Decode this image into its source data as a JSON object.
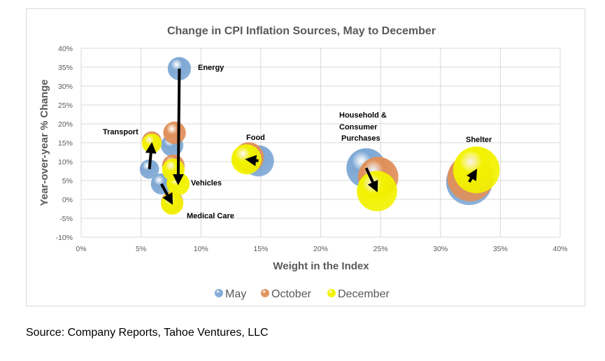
{
  "chart_data": {
    "type": "bubble",
    "title": "Change in CPI Inflation Sources, May to December",
    "xlabel": "Weight in the Index",
    "ylabel": "Year-over-year % Change",
    "xlim": [
      0,
      40
    ],
    "ylim": [
      -10,
      40
    ],
    "x_ticks": [
      "0%",
      "5%",
      "10%",
      "15%",
      "20%",
      "25%",
      "30%",
      "35%",
      "40%"
    ],
    "y_ticks": [
      "40%",
      "35%",
      "30%",
      "25%",
      "20%",
      "15%",
      "10%",
      "5%",
      "0%",
      "-5%",
      "-10%"
    ],
    "grid": true,
    "legend": "bottom",
    "bubble_size": "weight in the index",
    "series": [
      {
        "name": "May",
        "color": "#7ea8d4",
        "points": [
          {
            "category": "Energy",
            "x": 8.2,
            "y": 34.6
          },
          {
            "category": "Vehicles",
            "x": 7.6,
            "y": 14.3
          },
          {
            "category": "Transport",
            "x": 5.7,
            "y": 8.0
          },
          {
            "category": "Medical Care",
            "x": 6.7,
            "y": 4.1
          },
          {
            "category": "Food",
            "x": 14.8,
            "y": 10.2
          },
          {
            "category": "Household & Consumer Purchases",
            "x": 23.8,
            "y": 8.3
          },
          {
            "category": "Shelter",
            "x": 32.4,
            "y": 4.6
          }
        ]
      },
      {
        "name": "October",
        "color": "#e0905a",
        "points": [
          {
            "category": "Energy",
            "x": 7.8,
            "y": 17.6
          },
          {
            "category": "Vehicles",
            "x": 7.7,
            "y": 8.9
          },
          {
            "category": "Transport",
            "x": 5.9,
            "y": 15.4
          },
          {
            "category": "Medical Care",
            "x": 7.6,
            "y": -0.8
          },
          {
            "category": "Food",
            "x": 14.0,
            "y": 11.1
          },
          {
            "category": "Household & Consumer Purchases",
            "x": 24.8,
            "y": 5.9
          },
          {
            "category": "Shelter",
            "x": 32.5,
            "y": 5.6
          }
        ]
      },
      {
        "name": "December",
        "color": "#f2f200",
        "points": [
          {
            "category": "Energy",
            "x": 8.1,
            "y": 4.1
          },
          {
            "category": "Vehicles",
            "x": 7.7,
            "y": 7.8
          },
          {
            "category": "Transport",
            "x": 5.9,
            "y": 14.8
          },
          {
            "category": "Medical Care",
            "x": 7.6,
            "y": -1.1
          },
          {
            "category": "Food",
            "x": 13.8,
            "y": 10.6
          },
          {
            "category": "Household & Consumer Purchases",
            "x": 24.7,
            "y": 2.2
          },
          {
            "category": "Shelter",
            "x": 33.0,
            "y": 7.8
          }
        ]
      }
    ],
    "arrows_from_may_to_december": [
      "Energy",
      "Transport",
      "Medical Care",
      "Food",
      "Household & Consumer Purchases",
      "Shelter"
    ],
    "labels": {
      "energy": "Energy",
      "vehicles": "Vehicles",
      "transport": "Transport",
      "medical": "Medical Care",
      "food": "Food",
      "household_1": "Household &",
      "household_2": "Consumer",
      "household_3": "Purchases",
      "shelter": "Shelter"
    }
  },
  "source": "Source:  Company Reports, Tahoe Ventures, LLC"
}
